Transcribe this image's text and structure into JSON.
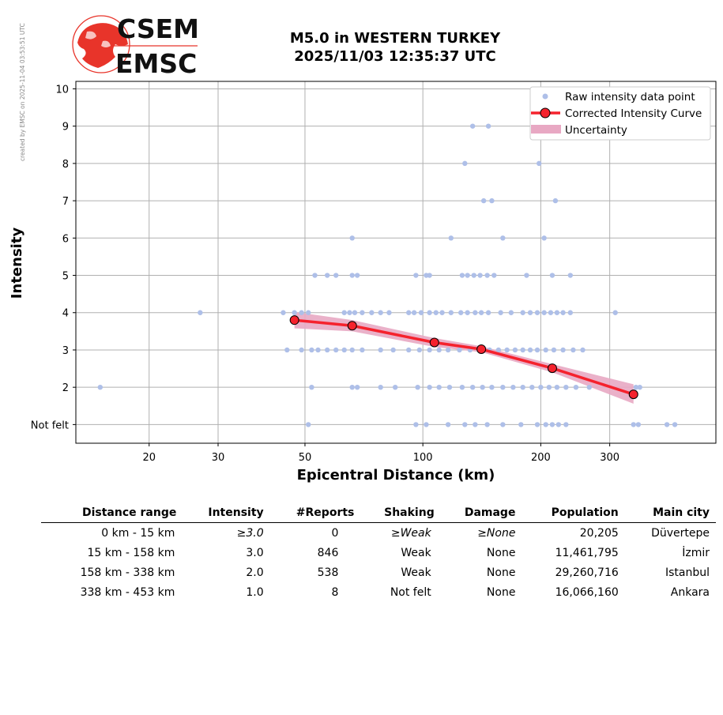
{
  "stamp": "created by EMSC on 2025-11-04 03:53:51 UTC",
  "logo": {
    "top": "CSEM",
    "bottom": "EMSC"
  },
  "title": {
    "line1": "M5.0 in WESTERN TURKEY",
    "line2": "2025/11/03 12:35:37 UTC"
  },
  "chart_data": {
    "type": "scatter",
    "xlabel": "Epicentral Distance (km)",
    "ylabel": "Intensity",
    "xscale": "log",
    "xlim": [
      13,
      560
    ],
    "ylim": [
      0.5,
      10.2
    ],
    "xticks": [
      20,
      30,
      50,
      100,
      200,
      300
    ],
    "xtick_labels": [
      "20",
      "30",
      "50",
      "100",
      "200",
      "300"
    ],
    "yticks": [
      1,
      2,
      3,
      4,
      5,
      6,
      7,
      8,
      9,
      10
    ],
    "ytick_labels": [
      "Not felt",
      "2",
      "3",
      "4",
      "5",
      "6",
      "7",
      "8",
      "9",
      "10"
    ],
    "grid": true,
    "legend_position": "top-right",
    "legend": [
      "Raw intensity data point",
      "Corrected Intensity Curve",
      "Uncertainty"
    ],
    "colors": {
      "raw": "#aebfe8",
      "curve": "#f5222d",
      "uncertainty": "#e8a8c3",
      "grid": "#b0b0b0"
    },
    "series": [
      {
        "name": "Raw intensity data point",
        "type": "scatter",
        "points": [
          [
            134,
            9
          ],
          [
            147,
            9
          ],
          [
            128,
            8
          ],
          [
            198,
            8
          ],
          [
            143,
            7
          ],
          [
            150,
            7
          ],
          [
            218,
            7
          ],
          [
            66,
            6
          ],
          [
            118,
            6
          ],
          [
            160,
            6
          ],
          [
            204,
            6
          ],
          [
            53,
            5
          ],
          [
            57,
            5
          ],
          [
            60,
            5
          ],
          [
            66,
            5
          ],
          [
            68,
            5
          ],
          [
            96,
            5
          ],
          [
            102,
            5
          ],
          [
            104,
            5
          ],
          [
            126,
            5
          ],
          [
            130,
            5
          ],
          [
            135,
            5
          ],
          [
            140,
            5
          ],
          [
            146,
            5
          ],
          [
            152,
            5
          ],
          [
            184,
            5
          ],
          [
            214,
            5
          ],
          [
            238,
            5
          ],
          [
            27,
            4
          ],
          [
            44,
            4
          ],
          [
            47,
            4
          ],
          [
            49,
            4
          ],
          [
            51,
            4
          ],
          [
            63,
            4
          ],
          [
            65,
            4
          ],
          [
            67,
            4
          ],
          [
            70,
            4
          ],
          [
            74,
            4
          ],
          [
            78,
            4
          ],
          [
            82,
            4
          ],
          [
            92,
            4
          ],
          [
            95,
            4
          ],
          [
            99,
            4
          ],
          [
            104,
            4
          ],
          [
            108,
            4
          ],
          [
            112,
            4
          ],
          [
            118,
            4
          ],
          [
            125,
            4
          ],
          [
            130,
            4
          ],
          [
            136,
            4
          ],
          [
            141,
            4
          ],
          [
            147,
            4
          ],
          [
            158,
            4
          ],
          [
            168,
            4
          ],
          [
            180,
            4
          ],
          [
            188,
            4
          ],
          [
            196,
            4
          ],
          [
            204,
            4
          ],
          [
            212,
            4
          ],
          [
            220,
            4
          ],
          [
            228,
            4
          ],
          [
            238,
            4
          ],
          [
            310,
            4
          ],
          [
            45,
            3
          ],
          [
            49,
            3
          ],
          [
            52,
            3
          ],
          [
            54,
            3
          ],
          [
            57,
            3
          ],
          [
            60,
            3
          ],
          [
            63,
            3
          ],
          [
            66,
            3
          ],
          [
            70,
            3
          ],
          [
            78,
            3
          ],
          [
            84,
            3
          ],
          [
            92,
            3
          ],
          [
            98,
            3
          ],
          [
            104,
            3
          ],
          [
            110,
            3
          ],
          [
            116,
            3
          ],
          [
            124,
            3
          ],
          [
            132,
            3
          ],
          [
            140,
            3
          ],
          [
            148,
            3
          ],
          [
            156,
            3
          ],
          [
            164,
            3
          ],
          [
            172,
            3
          ],
          [
            180,
            3
          ],
          [
            188,
            3
          ],
          [
            196,
            3
          ],
          [
            206,
            3
          ],
          [
            216,
            3
          ],
          [
            228,
            3
          ],
          [
            242,
            3
          ],
          [
            256,
            3
          ],
          [
            15,
            2
          ],
          [
            52,
            2
          ],
          [
            66,
            2
          ],
          [
            68,
            2
          ],
          [
            78,
            2
          ],
          [
            85,
            2
          ],
          [
            97,
            2
          ],
          [
            104,
            2
          ],
          [
            110,
            2
          ],
          [
            117,
            2
          ],
          [
            126,
            2
          ],
          [
            134,
            2
          ],
          [
            142,
            2
          ],
          [
            150,
            2
          ],
          [
            160,
            2
          ],
          [
            170,
            2
          ],
          [
            180,
            2
          ],
          [
            190,
            2
          ],
          [
            200,
            2
          ],
          [
            210,
            2
          ],
          [
            220,
            2
          ],
          [
            232,
            2
          ],
          [
            246,
            2
          ],
          [
            266,
            2
          ],
          [
            350,
            2
          ],
          [
            358,
            2
          ],
          [
            51,
            1
          ],
          [
            96,
            1
          ],
          [
            102,
            1
          ],
          [
            116,
            1
          ],
          [
            128,
            1
          ],
          [
            136,
            1
          ],
          [
            146,
            1
          ],
          [
            160,
            1
          ],
          [
            178,
            1
          ],
          [
            196,
            1
          ],
          [
            206,
            1
          ],
          [
            214,
            1
          ],
          [
            222,
            1
          ],
          [
            232,
            1
          ],
          [
            345,
            1
          ],
          [
            355,
            1
          ],
          [
            420,
            1
          ],
          [
            440,
            1
          ]
        ]
      },
      {
        "name": "Corrected Intensity Curve",
        "type": "line",
        "points": [
          [
            47,
            3.8
          ],
          [
            66,
            3.65
          ],
          [
            107,
            3.2
          ],
          [
            141,
            3.02
          ],
          [
            214,
            2.51
          ],
          [
            345,
            1.81
          ]
        ]
      },
      {
        "name": "Uncertainty",
        "type": "area",
        "upper": [
          [
            47,
            4.02
          ],
          [
            66,
            3.8
          ],
          [
            107,
            3.32
          ],
          [
            141,
            3.1
          ],
          [
            214,
            2.62
          ],
          [
            345,
            2.08
          ]
        ],
        "lower": [
          [
            47,
            3.58
          ],
          [
            66,
            3.5
          ],
          [
            107,
            3.08
          ],
          [
            141,
            2.94
          ],
          [
            214,
            2.4
          ],
          [
            345,
            1.56
          ]
        ]
      }
    ]
  },
  "table": {
    "headers": [
      "Distance range",
      "Intensity",
      "#Reports",
      "Shaking",
      "Damage",
      "Population",
      "Main city"
    ],
    "rows": [
      {
        "distance": "0 km -   15 km",
        "intensity": "≥3.0",
        "reports": "0",
        "shaking": "≥Weak",
        "damage": "≥None",
        "population": "20,205",
        "city": "Düvertepe"
      },
      {
        "distance": "15 km -  158 km",
        "intensity": "3.0",
        "reports": "846",
        "shaking": "Weak",
        "damage": "None",
        "population": "11,461,795",
        "city": "İzmir"
      },
      {
        "distance": "158 km -  338 km",
        "intensity": "2.0",
        "reports": "538",
        "shaking": "Weak",
        "damage": "None",
        "population": "29,260,716",
        "city": "Istanbul"
      },
      {
        "distance": "338 km -  453 km",
        "intensity": "1.0",
        "reports": "8",
        "shaking": "Not felt",
        "damage": "None",
        "population": "16,066,160",
        "city": "Ankara"
      }
    ]
  }
}
